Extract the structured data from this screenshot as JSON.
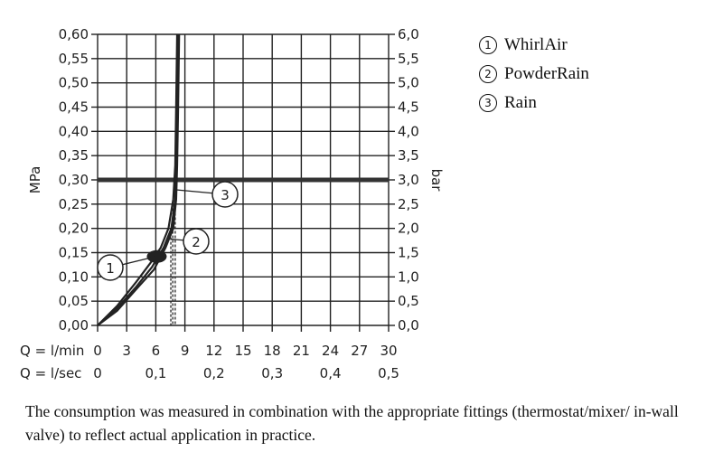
{
  "chart_data": {
    "type": "line",
    "left_axis": {
      "label": "MPa",
      "ticks": [
        "0,00",
        "0,05",
        "0,10",
        "0,15",
        "0,20",
        "0,25",
        "0,30",
        "0,35",
        "0,40",
        "0,45",
        "0,50",
        "0,55",
        "0,60"
      ],
      "ylim": [
        0,
        0.6
      ]
    },
    "right_axis": {
      "label": "bar",
      "ticks": [
        "0,0",
        "0,5",
        "1,0",
        "1,5",
        "2,0",
        "2,5",
        "3,0",
        "3,5",
        "4,0",
        "4,5",
        "5,0",
        "5,5",
        "6,0"
      ]
    },
    "x_axis": {
      "prefix_lmin": "Q = l/min",
      "ticks_lmin": [
        "0",
        "3",
        "6",
        "9",
        "12",
        "15",
        "18",
        "21",
        "24",
        "27",
        "30"
      ],
      "prefix_lsec": "Q = l/sec",
      "ticks_lsec": [
        "0",
        "0,1",
        "0,2",
        "0,3",
        "0,4",
        "0,5"
      ],
      "xlim": [
        0,
        30
      ]
    },
    "grid": true,
    "reference_line": {
      "y": 0.3
    },
    "series": [
      {
        "name": "WhirlAir",
        "marker": "1",
        "x": [
          0,
          2,
          4,
          5.5,
          6.5,
          7.3,
          7.8,
          8.0,
          8.1,
          8.2
        ],
        "y": [
          0,
          0.04,
          0.09,
          0.13,
          0.16,
          0.2,
          0.26,
          0.33,
          0.45,
          0.6
        ]
      },
      {
        "name": "PowderRain",
        "marker": "2",
        "x": [
          0,
          2,
          4,
          5.6,
          6.8,
          7.6,
          8.0,
          8.1,
          8.2,
          8.3
        ],
        "y": [
          0,
          0.035,
          0.08,
          0.12,
          0.16,
          0.2,
          0.26,
          0.33,
          0.45,
          0.6
        ]
      },
      {
        "name": "Rain",
        "marker": "3",
        "x": [
          0,
          2,
          4,
          5.8,
          7.0,
          7.8,
          8.1,
          8.2,
          8.3,
          8.4
        ],
        "y": [
          0,
          0.03,
          0.075,
          0.115,
          0.16,
          0.2,
          0.26,
          0.33,
          0.45,
          0.6
        ]
      }
    ],
    "callouts": [
      {
        "label": "1",
        "series": "WhirlAir",
        "at_y": 0.14
      },
      {
        "label": "2",
        "series": "PowderRain",
        "at_y": 0.18
      },
      {
        "label": "3",
        "series": "Rain",
        "at_y": 0.28
      }
    ],
    "legend": {
      "placement": "top-right",
      "items": [
        {
          "marker": "1",
          "name": "WhirlAir"
        },
        {
          "marker": "2",
          "name": "PowderRain"
        },
        {
          "marker": "3",
          "name": "Rain"
        }
      ]
    },
    "footnote": "The consumption was measured in combination with the appropriate fittings (thermostat/mixer/ in-wall valve) to reflect actual application in practice.",
    "colors": {
      "line": "#222222",
      "grid": "#222222",
      "reference": "#333333"
    }
  }
}
